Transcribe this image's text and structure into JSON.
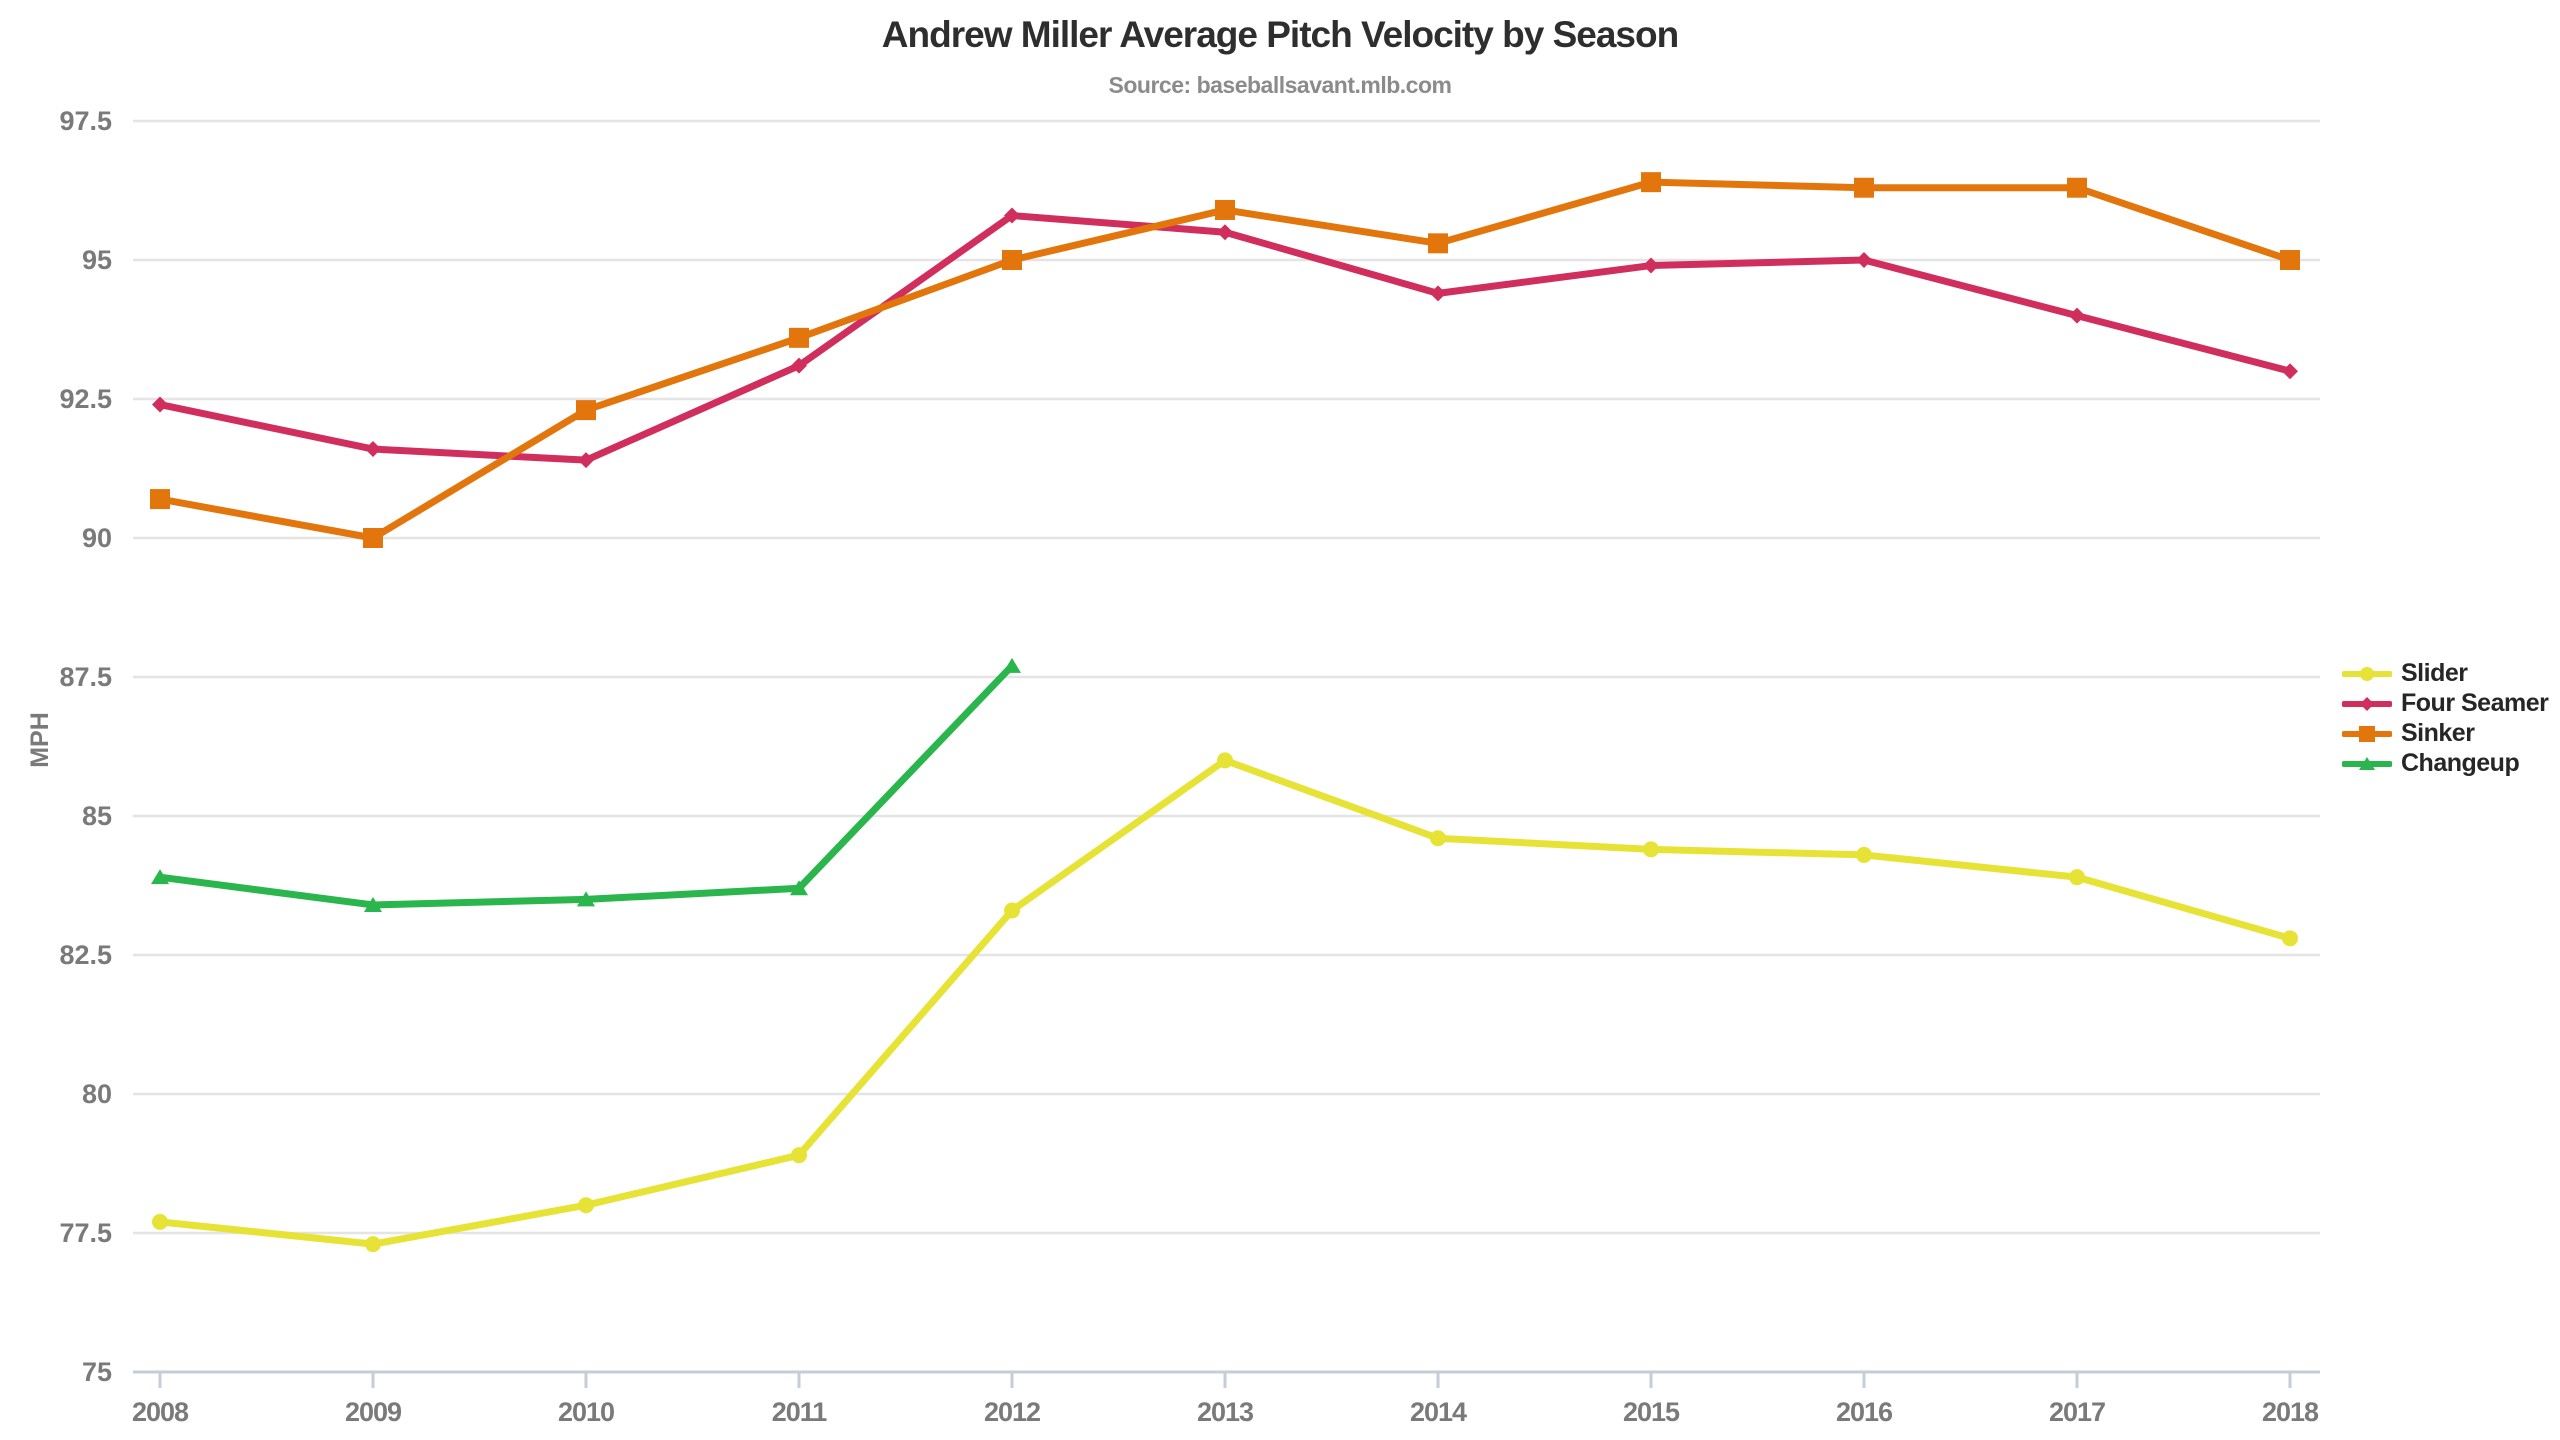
{
  "header": {
    "title": "Andrew Miller Average Pitch Velocity by Season",
    "source": "Source: baseballsavant.mlb.com"
  },
  "chart_data": {
    "type": "line",
    "title": "Andrew Miller Average Pitch Velocity by Season",
    "subtitle": "Source: baseballsavant.mlb.com",
    "xlabel": "",
    "ylabel": "MPH",
    "x": [
      2008,
      2009,
      2010,
      2011,
      2012,
      2013,
      2014,
      2015,
      2016,
      2017,
      2018
    ],
    "ylim": [
      75,
      97.5
    ],
    "yticks": [
      75,
      77.5,
      80,
      82.5,
      85,
      87.5,
      90,
      92.5,
      95,
      97.5
    ],
    "ytick_labels": [
      "75",
      "77.5",
      "80",
      "82.5",
      "85",
      "87.5",
      "90",
      "92.5",
      "95",
      "97.5"
    ],
    "grid": true,
    "legend_position": "right-middle",
    "series": [
      {
        "name": "Slider",
        "color": "#e7e336",
        "marker": "circle",
        "values": [
          77.7,
          77.3,
          78.0,
          78.9,
          83.3,
          86.0,
          84.6,
          84.4,
          84.3,
          83.9,
          82.8
        ]
      },
      {
        "name": "Four Seamer",
        "color": "#d02f5e",
        "marker": "diamond",
        "values": [
          92.4,
          91.6,
          91.4,
          93.1,
          95.8,
          95.5,
          94.4,
          94.9,
          95.0,
          94.0,
          93.0
        ]
      },
      {
        "name": "Sinker",
        "color": "#e2760d",
        "marker": "square",
        "values": [
          90.7,
          90.0,
          92.3,
          93.6,
          95.0,
          95.9,
          95.3,
          96.4,
          96.3,
          96.3,
          95.0
        ]
      },
      {
        "name": "Changeup",
        "color": "#2ab54d",
        "marker": "triangle",
        "values": [
          83.9,
          83.4,
          83.5,
          83.7,
          87.7,
          null,
          null,
          null,
          null,
          null,
          null
        ]
      }
    ],
    "style_colors": {
      "gridline": "#e4e4e4",
      "axis_line": "#c5ced8",
      "tick_label": "#7a7a7a",
      "title": "#2e2e2e",
      "source": "#8b8b8b",
      "legend_text": "#262626"
    }
  }
}
